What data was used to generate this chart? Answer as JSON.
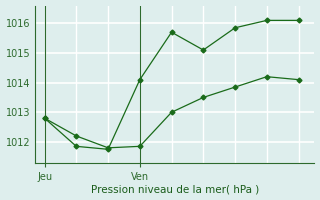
{
  "line1_x": [
    0,
    1,
    2,
    3,
    4,
    5,
    6,
    7,
    8
  ],
  "line1_y": [
    1012.8,
    1011.85,
    1011.75,
    1014.1,
    1015.7,
    1015.1,
    1015.85,
    1016.1,
    1016.1
  ],
  "line2_x": [
    0,
    1,
    2,
    3,
    4,
    5,
    6,
    7,
    8
  ],
  "line2_y": [
    1012.8,
    1012.2,
    1011.8,
    1011.85,
    1013.0,
    1013.5,
    1013.85,
    1014.2,
    1014.1
  ],
  "line_color": "#1a6b1a",
  "marker": "D",
  "markersize": 2.5,
  "yticks": [
    1012,
    1013,
    1014,
    1015,
    1016
  ],
  "ylim": [
    1011.3,
    1016.6
  ],
  "xlim": [
    -0.3,
    8.5
  ],
  "xtick_positions": [
    0,
    3
  ],
  "xtick_labels": [
    "Jeu",
    "Ven"
  ],
  "vline_positions": [
    0,
    3
  ],
  "xlabel": "Pression niveau de la mer( hPa )",
  "bg_color": "#deeeed",
  "grid_color": "#ffffff",
  "spine_color": "#2d6a2d",
  "tick_color": "#2d6a2d",
  "label_color": "#1a5c1a"
}
